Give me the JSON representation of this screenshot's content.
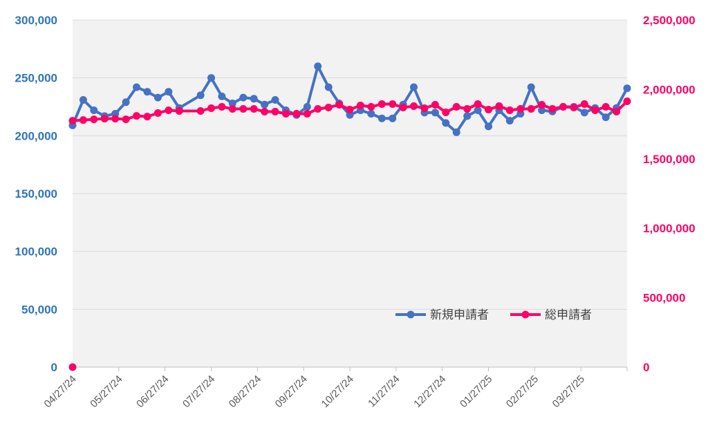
{
  "chart_data": {
    "type": "line",
    "title": "",
    "xlabel": "",
    "ylabel": "",
    "x_tick_labels": [
      "04/27/24",
      "05/27/24",
      "06/27/24",
      "07/27/24",
      "08/27/24",
      "09/27/24",
      "10/27/24",
      "11/27/24",
      "12/27/24",
      "01/27/25",
      "02/27/25",
      "03/27/25"
    ],
    "y_left": {
      "ylim": [
        0,
        300000
      ],
      "ticks": [
        "0",
        "50,000",
        "100,000",
        "150,000",
        "200,000",
        "250,000",
        "300,000"
      ],
      "color": "#2e75b6"
    },
    "y_right": {
      "ylim": [
        0,
        2500000
      ],
      "ticks": [
        "0",
        "500,000",
        "1,000,000",
        "1,500,000",
        "2,000,000",
        "2,500,000"
      ],
      "color": "#ff0066"
    },
    "grid": true,
    "legend_position": "lower-right",
    "series": [
      {
        "name": "新規申請者",
        "axis": "left",
        "color": "#4472c4",
        "points": [
          [
            "2024-04-27",
            209000
          ],
          [
            "2024-05-04",
            231000
          ],
          [
            "2024-05-11",
            222000
          ],
          [
            "2024-05-18",
            217000
          ],
          [
            "2024-05-25",
            219000
          ],
          [
            "2024-06-01",
            229000
          ],
          [
            "2024-06-08",
            242000
          ],
          [
            "2024-06-15",
            238000
          ],
          [
            "2024-06-22",
            233000
          ],
          [
            "2024-06-29",
            238000
          ],
          [
            "2024-07-06",
            224000
          ],
          [
            "2024-07-20",
            235000
          ],
          [
            "2024-07-27",
            250000
          ],
          [
            "2024-08-03",
            234000
          ],
          [
            "2024-08-10",
            228000
          ],
          [
            "2024-08-17",
            233000
          ],
          [
            "2024-08-24",
            232000
          ],
          [
            "2024-08-31",
            227000
          ],
          [
            "2024-09-07",
            231000
          ],
          [
            "2024-09-14",
            222000
          ],
          [
            "2024-09-21",
            218000
          ],
          [
            "2024-09-28",
            225000
          ],
          [
            "2024-10-05",
            260000
          ],
          [
            "2024-10-12",
            242000
          ],
          [
            "2024-10-19",
            228000
          ],
          [
            "2024-10-26",
            218000
          ],
          [
            "2024-11-02",
            222000
          ],
          [
            "2024-11-09",
            219000
          ],
          [
            "2024-11-16",
            215000
          ],
          [
            "2024-11-23",
            215000
          ],
          [
            "2024-11-30",
            227000
          ],
          [
            "2024-12-07",
            242000
          ],
          [
            "2024-12-14",
            220000
          ],
          [
            "2024-12-21",
            220000
          ],
          [
            "2024-12-28",
            211000
          ],
          [
            "2025-01-04",
            203000
          ],
          [
            "2025-01-11",
            217000
          ],
          [
            "2025-01-18",
            222000
          ],
          [
            "2025-01-25",
            208000
          ],
          [
            "2025-02-01",
            222000
          ],
          [
            "2025-02-08",
            213000
          ],
          [
            "2025-02-15",
            219000
          ],
          [
            "2025-02-22",
            242000
          ],
          [
            "2025-03-01",
            222000
          ],
          [
            "2025-03-08",
            221000
          ],
          [
            "2025-03-15",
            225000
          ],
          [
            "2025-03-22",
            225000
          ],
          [
            "2025-03-29",
            220000
          ],
          [
            "2025-04-05",
            224000
          ],
          [
            "2025-04-12",
            216000
          ],
          [
            "2025-04-19",
            224000
          ],
          [
            "2025-04-26",
            241000
          ]
        ]
      },
      {
        "name": "総申請者",
        "axis": "right",
        "color": "#ff0066",
        "points": [
          [
            "2024-04-27",
            0
          ],
          [
            "2024-04-27",
            1775000
          ],
          [
            "2024-05-04",
            1780000
          ],
          [
            "2024-05-11",
            1785000
          ],
          [
            "2024-05-18",
            1790000
          ],
          [
            "2024-05-25",
            1790000
          ],
          [
            "2024-06-01",
            1785000
          ],
          [
            "2024-06-08",
            1810000
          ],
          [
            "2024-06-15",
            1805000
          ],
          [
            "2024-06-22",
            1830000
          ],
          [
            "2024-06-29",
            1850000
          ],
          [
            "2024-07-06",
            1845000
          ],
          [
            "2024-07-20",
            1845000
          ],
          [
            "2024-07-27",
            1865000
          ],
          [
            "2024-08-03",
            1875000
          ],
          [
            "2024-08-10",
            1860000
          ],
          [
            "2024-08-17",
            1860000
          ],
          [
            "2024-08-24",
            1860000
          ],
          [
            "2024-08-31",
            1840000
          ],
          [
            "2024-09-07",
            1840000
          ],
          [
            "2024-09-14",
            1825000
          ],
          [
            "2024-09-21",
            1825000
          ],
          [
            "2024-09-28",
            1825000
          ],
          [
            "2024-10-05",
            1860000
          ],
          [
            "2024-10-12",
            1870000
          ],
          [
            "2024-10-19",
            1890000
          ],
          [
            "2024-10-26",
            1855000
          ],
          [
            "2024-11-02",
            1885000
          ],
          [
            "2024-11-09",
            1875000
          ],
          [
            "2024-11-16",
            1895000
          ],
          [
            "2024-11-23",
            1895000
          ],
          [
            "2024-11-30",
            1870000
          ],
          [
            "2024-12-07",
            1880000
          ],
          [
            "2024-12-14",
            1865000
          ],
          [
            "2024-12-21",
            1890000
          ],
          [
            "2024-12-28",
            1835000
          ],
          [
            "2025-01-04",
            1875000
          ],
          [
            "2025-01-11",
            1860000
          ],
          [
            "2025-01-18",
            1895000
          ],
          [
            "2025-01-25",
            1855000
          ],
          [
            "2025-02-01",
            1880000
          ],
          [
            "2025-02-08",
            1850000
          ],
          [
            "2025-02-15",
            1860000
          ],
          [
            "2025-02-22",
            1860000
          ],
          [
            "2025-03-01",
            1890000
          ],
          [
            "2025-03-08",
            1860000
          ],
          [
            "2025-03-15",
            1875000
          ],
          [
            "2025-03-22",
            1870000
          ],
          [
            "2025-03-29",
            1895000
          ],
          [
            "2025-04-05",
            1850000
          ],
          [
            "2025-04-12",
            1875000
          ],
          [
            "2025-04-19",
            1840000
          ],
          [
            "2025-04-26",
            1915000
          ]
        ]
      }
    ]
  }
}
